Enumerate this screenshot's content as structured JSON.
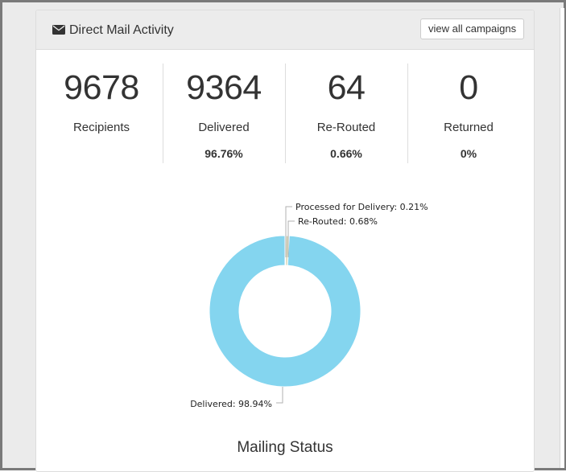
{
  "panel": {
    "title": "Direct Mail Activity",
    "icon": "envelope-icon",
    "view_all_label": "view all campaigns"
  },
  "stats": [
    {
      "value": "9678",
      "label": "Recipients",
      "percent": ""
    },
    {
      "value": "9364",
      "label": "Delivered",
      "percent": "96.76%"
    },
    {
      "value": "64",
      "label": "Re-Routed",
      "percent": "0.66%"
    },
    {
      "value": "0",
      "label": "Returned",
      "percent": "0%"
    }
  ],
  "chart_data": {
    "type": "pie",
    "title": "Mailing Status",
    "donut": true,
    "slices": [
      {
        "label": "Delivered",
        "value": 98.94,
        "display": "Delivered: 98.94%",
        "color": "#84d5ef"
      },
      {
        "label": "Processed for Delivery",
        "value": 0.21,
        "display": "Processed for Delivery: 0.21%",
        "color": "#cfe9e0"
      },
      {
        "label": "Re-Routed",
        "value": 0.68,
        "display": "Re-Routed: 0.68%",
        "color": "#d9d6b8"
      }
    ]
  },
  "colors": {
    "accent_ring": "#84d5ef",
    "text": "#333333"
  }
}
